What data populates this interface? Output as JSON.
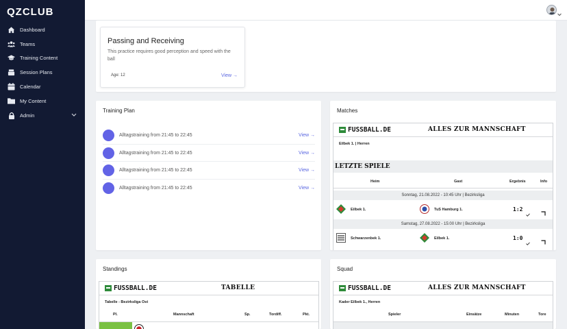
{
  "app": {
    "brand": "QZCLUB"
  },
  "sidebar": {
    "items": [
      {
        "label": "Dashboard",
        "icon": "home-icon"
      },
      {
        "label": "Teams",
        "icon": "users-icon"
      },
      {
        "label": "Training Content",
        "icon": "hat-icon"
      },
      {
        "label": "Session Plans",
        "icon": "layers-icon"
      },
      {
        "label": "Calendar",
        "icon": "calendar-icon"
      },
      {
        "label": "My Content",
        "icon": "folder-icon"
      },
      {
        "label": "Admin",
        "icon": "lock-icon"
      }
    ]
  },
  "card": {
    "title": "Passing and Receiving",
    "description": "This practice requires good perception and speed with the ball",
    "age": "Age: 12",
    "view": "View →"
  },
  "training_plan": {
    "title": "Training Plan",
    "items": [
      {
        "text": "Alltagstraining from 21:45 to 22:45",
        "view": "View →"
      },
      {
        "text": "Alltagstraining from 21:45 to 22:45",
        "view": "View →"
      },
      {
        "text": "Alltagstraining from 21:45 to 22:45",
        "view": "View →"
      },
      {
        "text": "Alltagstraining from 21:45 to 22:45",
        "view": "View →"
      }
    ]
  },
  "matches": {
    "title": "Matches",
    "logo": "FUSSBALL.DE",
    "headline": "ALLES ZUR MANNSCHAFT",
    "team_label": "Eilbek 1. | Herren",
    "section": "LETZTE SPIELE",
    "columns": [
      "Heim",
      "Gast",
      "Ergebnis",
      "Info"
    ],
    "games": [
      {
        "date": "Sonntag, 21.08.2022 - 10:45 Uhr | Bezirksliga",
        "home": "Eilbek 1.",
        "away": "TuS Hamburg 1.",
        "score": "1:2"
      },
      {
        "date": "Samstag, 27.08.2022 - 15:00 Uhr | Bezirksliga",
        "home": "Schwarzenbek 1.",
        "away": "Eilbek 1.",
        "score": "1:0"
      }
    ]
  },
  "standings": {
    "title": "Standings",
    "logo": "FUSSBALL.DE",
    "headline": "TABELLE",
    "league": "Tabelle - Bezirksliga Ost",
    "columns": [
      "Pl.",
      "Mannschaft",
      "Sp.",
      "Tordiff.",
      "Pkt."
    ]
  },
  "squad": {
    "title": "Squad",
    "logo": "FUSSBALL.DE",
    "headline": "ALLES ZUR MANNSCHAFT",
    "team_label": "Kader Eilbek 1., Herren",
    "columns": [
      "Spieler",
      "Einsätze",
      "Minuten",
      "Tore"
    ]
  },
  "colors": {
    "sidebar": "#121a33",
    "accent": "#6263e6",
    "link": "#5865e0",
    "standings_highlight": "#7ac143"
  }
}
